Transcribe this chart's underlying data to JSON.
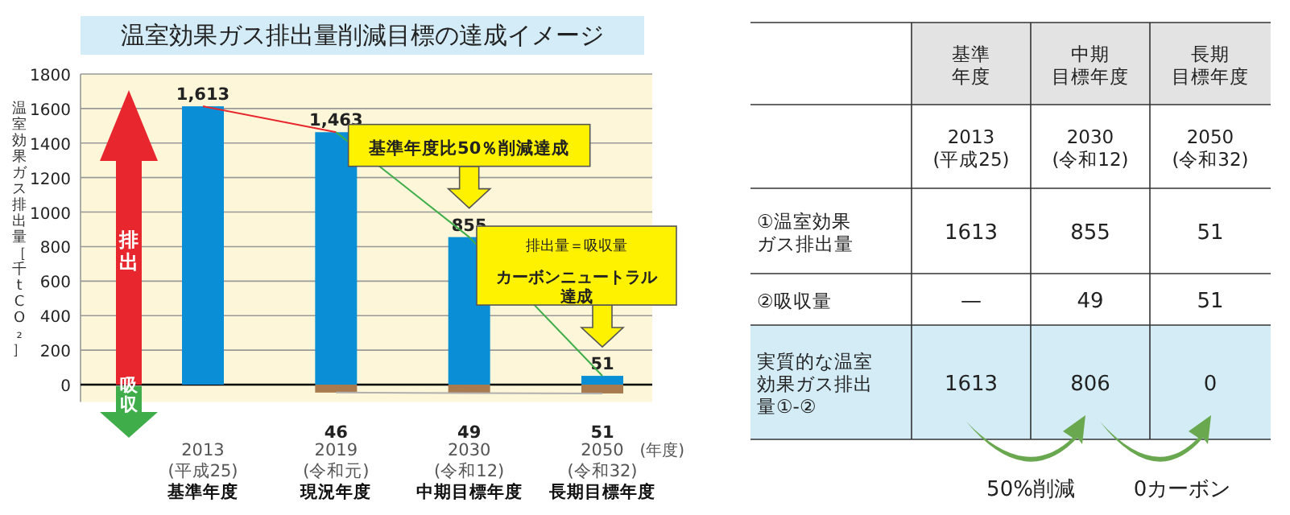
{
  "chart_data": [
    {
      "type": "bar",
      "title": "温室効果ガス排出量削減目標の達成イメージ",
      "ylabel": "温室効果ガス排出量［千tCO₂］",
      "categories": [
        "2013\n(平成25)\n基準年度",
        "2019\n(令和元)\n現況年度",
        "2030\n(令和12)\n中期目標年度",
        "2050\n(令和32)\n長期目標年度"
      ],
      "stacked": true,
      "ylim": [
        -100,
        1800
      ],
      "yticks": [
        0,
        200,
        400,
        600,
        800,
        1000,
        1200,
        1400,
        1600,
        1800
      ],
      "grid": "y",
      "series": [
        {
          "color": "#0a8fd6",
          "values": [
            1613,
            1463,
            855,
            51
          ],
          "value_labels": [
            "1,613",
            "1,463",
            "855",
            "51"
          ]
        },
        {
          "color": "#a87a4e",
          "values": [
            null,
            -46,
            -49,
            -51
          ]
        },
        {
          "type": "line",
          "color": "#e8262d",
          "values": [
            1613,
            1463,
            null,
            null
          ]
        },
        {
          "type": "line",
          "color": "#3fae4a",
          "values": [
            null,
            1463,
            855,
            51
          ]
        },
        {
          "type": "line",
          "color": "#b0b0b0",
          "values": [
            null,
            -46,
            -49,
            -51
          ]
        }
      ],
      "annotations": [
        "基準年度比50％削減達成",
        "排出量＝吸収量",
        "カーボンニュートラル達成",
        "(年度)",
        "排出",
        "吸収",
        "46",
        "49",
        "51"
      ]
    },
    {
      "type": "other",
      "categories": [
        "基準年度",
        "中期目標年度",
        "長期目標年度"
      ],
      "y_categories": [
        null,
        "①温室効果ガス排出量",
        "②吸収量",
        "実質的な温室効果ガス排出量①-②"
      ],
      "cell_labels": [
        [
          "2013\n(平成25)",
          "2030\n(令和12)",
          "2050\n(令和32)"
        ],
        [
          "1613",
          "855",
          "51"
        ],
        [
          "—",
          "49",
          "51"
        ],
        [
          "1613",
          "806",
          "0"
        ]
      ],
      "annotations": [
        "50%削減",
        "0カーボン"
      ]
    }
  ]
}
